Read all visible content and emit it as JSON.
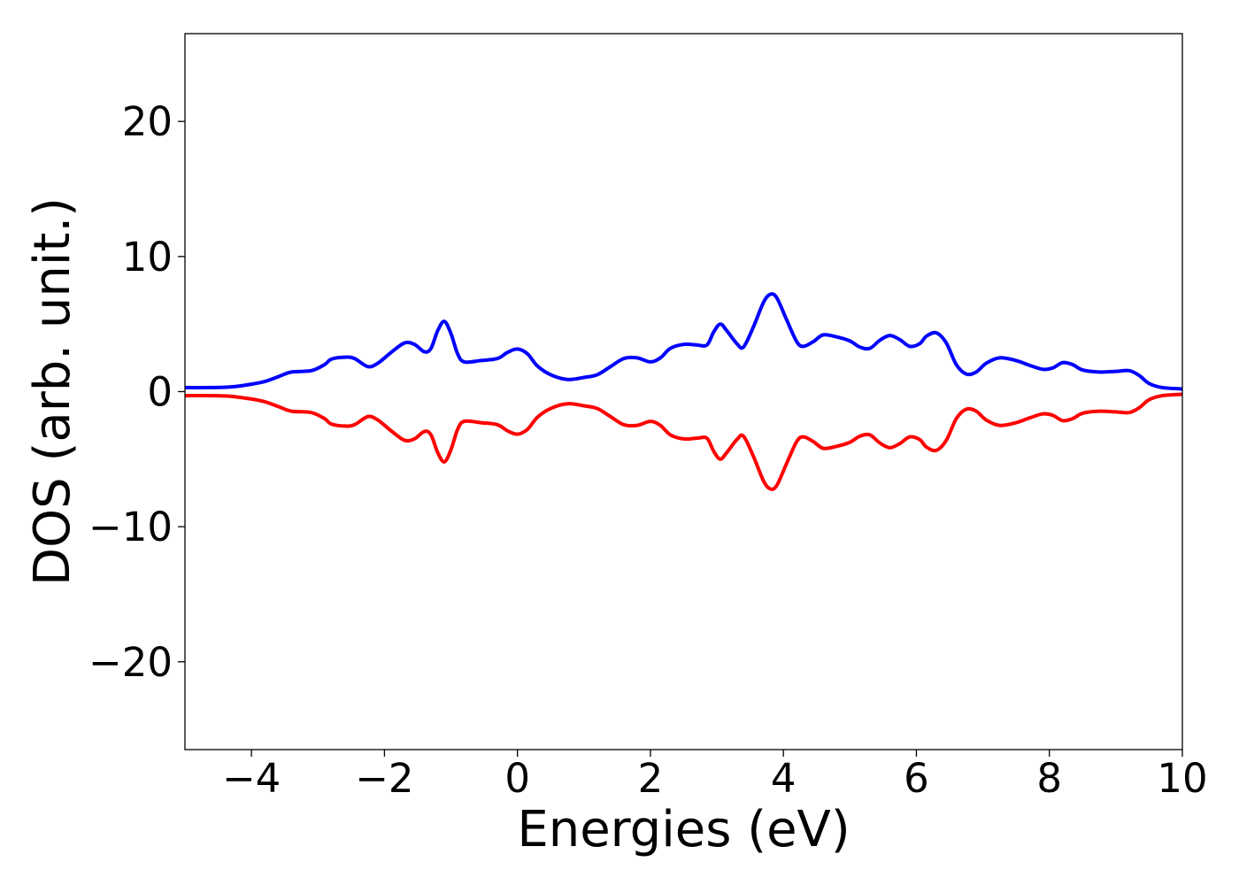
{
  "chart_data": {
    "type": "line",
    "title": "",
    "xlabel": "Energies (eV)",
    "ylabel": "DOS (arb. unit.)",
    "xlim": [
      -5,
      10
    ],
    "ylim": [
      -26.5,
      26.5
    ],
    "grid": false,
    "legend": "none",
    "xticks": [
      -4,
      -2,
      0,
      2,
      4,
      6,
      8,
      10
    ],
    "xtick_labels": [
      "−4",
      "−2",
      "0",
      "2",
      "4",
      "6",
      "8",
      "10"
    ],
    "yticks": [
      -20,
      -10,
      0,
      10,
      20
    ],
    "ytick_labels": [
      "−20",
      "−10",
      "0",
      "10",
      "20"
    ],
    "series": [
      {
        "color": "#0000ff",
        "points": [
          [
            -5.0,
            0.3
          ],
          [
            -4.6,
            0.3
          ],
          [
            -4.3,
            0.35
          ],
          [
            -4.0,
            0.55
          ],
          [
            -3.8,
            0.75
          ],
          [
            -3.6,
            1.1
          ],
          [
            -3.4,
            1.45
          ],
          [
            -3.1,
            1.55
          ],
          [
            -2.9,
            2.0
          ],
          [
            -2.8,
            2.4
          ],
          [
            -2.6,
            2.55
          ],
          [
            -2.45,
            2.45
          ],
          [
            -2.25,
            1.85
          ],
          [
            -2.1,
            2.1
          ],
          [
            -1.9,
            2.9
          ],
          [
            -1.7,
            3.6
          ],
          [
            -1.55,
            3.5
          ],
          [
            -1.4,
            2.95
          ],
          [
            -1.3,
            3.2
          ],
          [
            -1.2,
            4.5
          ],
          [
            -1.1,
            5.2
          ],
          [
            -1.0,
            4.3
          ],
          [
            -0.9,
            2.8
          ],
          [
            -0.8,
            2.2
          ],
          [
            -0.55,
            2.3
          ],
          [
            -0.3,
            2.45
          ],
          [
            -0.15,
            2.9
          ],
          [
            0.0,
            3.15
          ],
          [
            0.15,
            2.8
          ],
          [
            0.3,
            1.9
          ],
          [
            0.5,
            1.25
          ],
          [
            0.75,
            0.9
          ],
          [
            1.0,
            1.05
          ],
          [
            1.2,
            1.25
          ],
          [
            1.4,
            1.85
          ],
          [
            1.6,
            2.45
          ],
          [
            1.8,
            2.5
          ],
          [
            2.0,
            2.2
          ],
          [
            2.15,
            2.5
          ],
          [
            2.3,
            3.2
          ],
          [
            2.5,
            3.5
          ],
          [
            2.7,
            3.45
          ],
          [
            2.85,
            3.45
          ],
          [
            2.95,
            4.4
          ],
          [
            3.05,
            5.0
          ],
          [
            3.15,
            4.5
          ],
          [
            3.3,
            3.55
          ],
          [
            3.4,
            3.3
          ],
          [
            3.55,
            4.8
          ],
          [
            3.7,
            6.6
          ],
          [
            3.8,
            7.2
          ],
          [
            3.9,
            6.95
          ],
          [
            4.05,
            5.3
          ],
          [
            4.2,
            3.7
          ],
          [
            4.3,
            3.35
          ],
          [
            4.45,
            3.7
          ],
          [
            4.6,
            4.2
          ],
          [
            4.8,
            4.05
          ],
          [
            5.0,
            3.75
          ],
          [
            5.15,
            3.3
          ],
          [
            5.3,
            3.2
          ],
          [
            5.45,
            3.8
          ],
          [
            5.6,
            4.15
          ],
          [
            5.75,
            3.85
          ],
          [
            5.9,
            3.35
          ],
          [
            6.05,
            3.55
          ],
          [
            6.15,
            4.1
          ],
          [
            6.3,
            4.35
          ],
          [
            6.45,
            3.6
          ],
          [
            6.6,
            2.0
          ],
          [
            6.75,
            1.3
          ],
          [
            6.9,
            1.45
          ],
          [
            7.05,
            2.1
          ],
          [
            7.25,
            2.5
          ],
          [
            7.5,
            2.3
          ],
          [
            7.7,
            1.95
          ],
          [
            7.9,
            1.65
          ],
          [
            8.05,
            1.75
          ],
          [
            8.2,
            2.15
          ],
          [
            8.35,
            2.0
          ],
          [
            8.5,
            1.6
          ],
          [
            8.75,
            1.45
          ],
          [
            9.0,
            1.5
          ],
          [
            9.2,
            1.55
          ],
          [
            9.35,
            1.2
          ],
          [
            9.5,
            0.6
          ],
          [
            9.7,
            0.3
          ],
          [
            10.0,
            0.2
          ]
        ]
      },
      {
        "color": "#ff0000",
        "points": [
          [
            -5.0,
            -0.3
          ],
          [
            -4.6,
            -0.3
          ],
          [
            -4.3,
            -0.35
          ],
          [
            -4.0,
            -0.55
          ],
          [
            -3.8,
            -0.75
          ],
          [
            -3.6,
            -1.1
          ],
          [
            -3.4,
            -1.45
          ],
          [
            -3.1,
            -1.55
          ],
          [
            -2.9,
            -2.0
          ],
          [
            -2.8,
            -2.4
          ],
          [
            -2.6,
            -2.55
          ],
          [
            -2.45,
            -2.45
          ],
          [
            -2.25,
            -1.85
          ],
          [
            -2.1,
            -2.1
          ],
          [
            -1.9,
            -2.9
          ],
          [
            -1.7,
            -3.6
          ],
          [
            -1.55,
            -3.5
          ],
          [
            -1.4,
            -2.95
          ],
          [
            -1.3,
            -3.2
          ],
          [
            -1.2,
            -4.5
          ],
          [
            -1.1,
            -5.2
          ],
          [
            -1.0,
            -4.3
          ],
          [
            -0.9,
            -2.8
          ],
          [
            -0.8,
            -2.2
          ],
          [
            -0.55,
            -2.3
          ],
          [
            -0.3,
            -2.45
          ],
          [
            -0.15,
            -2.9
          ],
          [
            0.0,
            -3.15
          ],
          [
            0.15,
            -2.8
          ],
          [
            0.3,
            -1.9
          ],
          [
            0.5,
            -1.25
          ],
          [
            0.75,
            -0.9
          ],
          [
            1.0,
            -1.05
          ],
          [
            1.2,
            -1.25
          ],
          [
            1.4,
            -1.85
          ],
          [
            1.6,
            -2.45
          ],
          [
            1.8,
            -2.5
          ],
          [
            2.0,
            -2.2
          ],
          [
            2.15,
            -2.5
          ],
          [
            2.3,
            -3.2
          ],
          [
            2.5,
            -3.5
          ],
          [
            2.7,
            -3.45
          ],
          [
            2.85,
            -3.45
          ],
          [
            2.95,
            -4.4
          ],
          [
            3.05,
            -5.0
          ],
          [
            3.15,
            -4.5
          ],
          [
            3.3,
            -3.55
          ],
          [
            3.4,
            -3.3
          ],
          [
            3.55,
            -4.8
          ],
          [
            3.7,
            -6.6
          ],
          [
            3.8,
            -7.2
          ],
          [
            3.9,
            -6.95
          ],
          [
            4.05,
            -5.3
          ],
          [
            4.2,
            -3.7
          ],
          [
            4.3,
            -3.35
          ],
          [
            4.45,
            -3.7
          ],
          [
            4.6,
            -4.2
          ],
          [
            4.8,
            -4.05
          ],
          [
            5.0,
            -3.75
          ],
          [
            5.15,
            -3.3
          ],
          [
            5.3,
            -3.2
          ],
          [
            5.45,
            -3.8
          ],
          [
            5.6,
            -4.15
          ],
          [
            5.75,
            -3.85
          ],
          [
            5.9,
            -3.35
          ],
          [
            6.05,
            -3.55
          ],
          [
            6.15,
            -4.1
          ],
          [
            6.3,
            -4.35
          ],
          [
            6.45,
            -3.6
          ],
          [
            6.6,
            -2.0
          ],
          [
            6.75,
            -1.3
          ],
          [
            6.9,
            -1.45
          ],
          [
            7.05,
            -2.1
          ],
          [
            7.25,
            -2.5
          ],
          [
            7.5,
            -2.3
          ],
          [
            7.7,
            -1.95
          ],
          [
            7.9,
            -1.65
          ],
          [
            8.05,
            -1.75
          ],
          [
            8.2,
            -2.15
          ],
          [
            8.35,
            -2.0
          ],
          [
            8.5,
            -1.6
          ],
          [
            8.75,
            -1.45
          ],
          [
            9.0,
            -1.5
          ],
          [
            9.2,
            -1.55
          ],
          [
            9.35,
            -1.2
          ],
          [
            9.5,
            -0.6
          ],
          [
            9.7,
            -0.3
          ],
          [
            10.0,
            -0.2
          ]
        ]
      }
    ]
  }
}
